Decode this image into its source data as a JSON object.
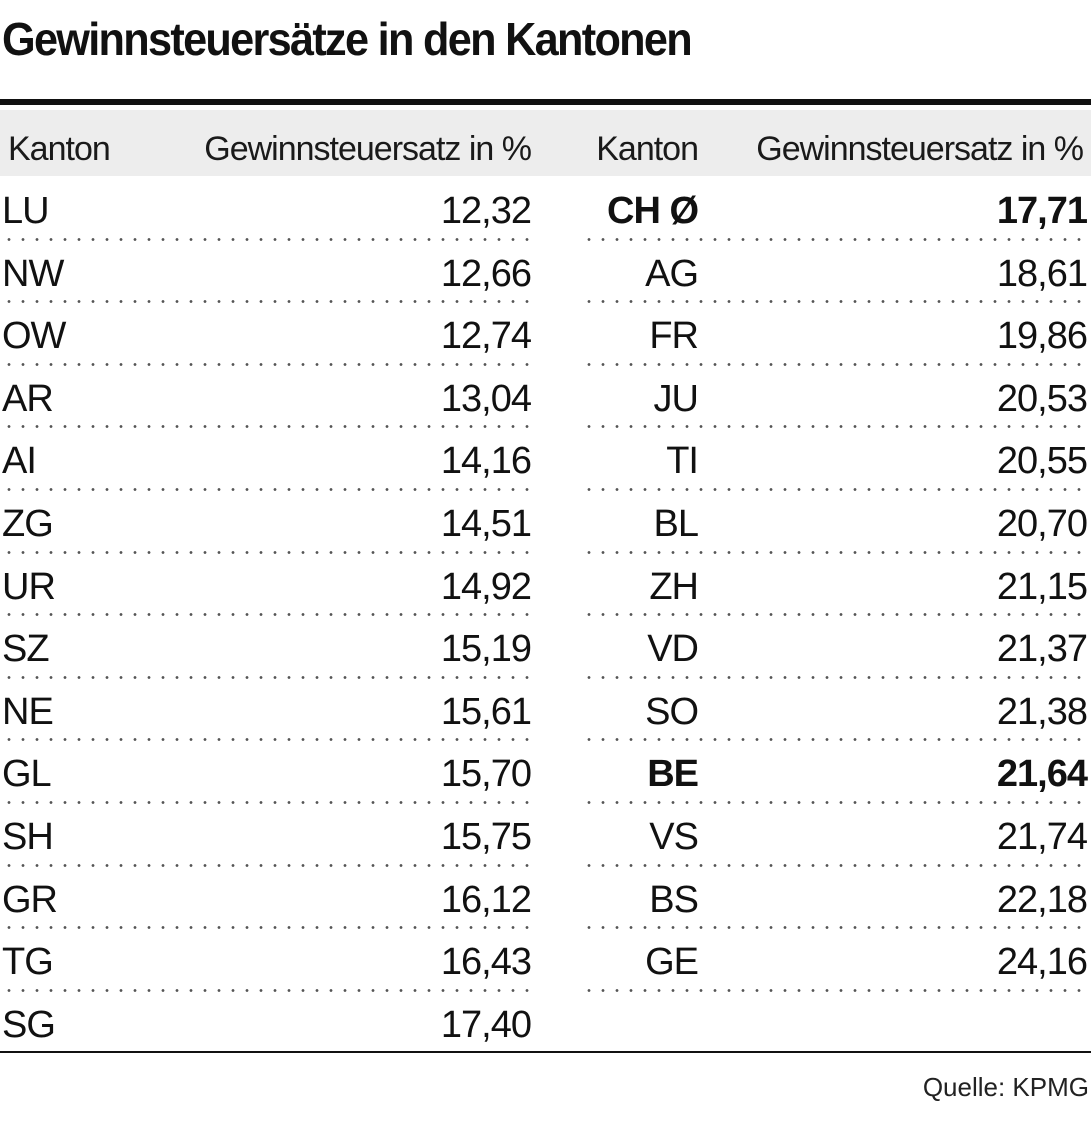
{
  "chart_data": {
    "type": "table",
    "title": "Gewinnsteuersätze in den Kantonen",
    "columns": [
      "Kanton",
      "Gewinnsteuersatz in %",
      "Kanton",
      "Gewinnsteuersatz in %"
    ],
    "left_rows": [
      {
        "kanton": "LU",
        "satz": "12,32"
      },
      {
        "kanton": "NW",
        "satz": "12,66"
      },
      {
        "kanton": "OW",
        "satz": "12,74"
      },
      {
        "kanton": "AR",
        "satz": "13,04"
      },
      {
        "kanton": "AI",
        "satz": "14,16"
      },
      {
        "kanton": "ZG",
        "satz": "14,51"
      },
      {
        "kanton": "UR",
        "satz": "14,92"
      },
      {
        "kanton": "SZ",
        "satz": "15,19"
      },
      {
        "kanton": "NE",
        "satz": "15,61"
      },
      {
        "kanton": "GL",
        "satz": "15,70"
      },
      {
        "kanton": "SH",
        "satz": "15,75"
      },
      {
        "kanton": "GR",
        "satz": "16,12"
      },
      {
        "kanton": "TG",
        "satz": "16,43"
      },
      {
        "kanton": "SG",
        "satz": "17,40"
      }
    ],
    "right_rows": [
      {
        "kanton": "CH Ø",
        "satz": "17,71",
        "bold": true
      },
      {
        "kanton": "AG",
        "satz": "18,61"
      },
      {
        "kanton": "FR",
        "satz": "19,86"
      },
      {
        "kanton": "JU",
        "satz": "20,53"
      },
      {
        "kanton": "TI",
        "satz": "20,55"
      },
      {
        "kanton": "BL",
        "satz": "20,70"
      },
      {
        "kanton": "ZH",
        "satz": "21,15"
      },
      {
        "kanton": "VD",
        "satz": "21,37"
      },
      {
        "kanton": "SO",
        "satz": "21,38"
      },
      {
        "kanton": "BE",
        "satz": "21,64",
        "bold": true
      },
      {
        "kanton": "VS",
        "satz": "21,74"
      },
      {
        "kanton": "BS",
        "satz": "22,18"
      },
      {
        "kanton": "GE",
        "satz": "24,16"
      }
    ],
    "source": "Quelle: KPMG"
  }
}
